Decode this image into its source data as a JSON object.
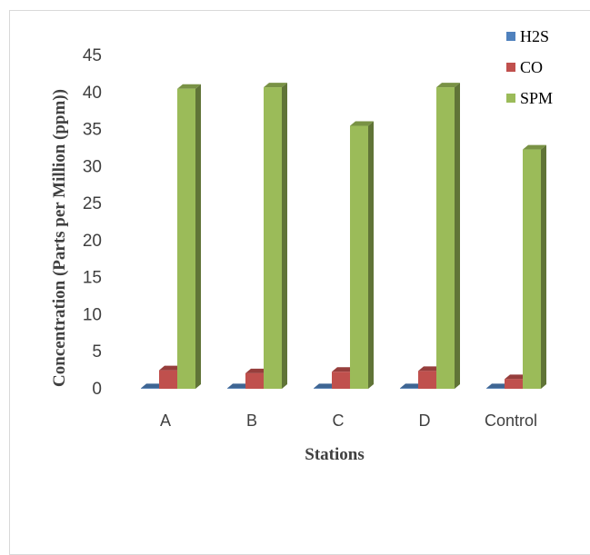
{
  "chart_data": {
    "type": "bar",
    "title": "",
    "xlabel": "Stations",
    "ylabel": "Concentration (Parts per Million (ppm))",
    "categories": [
      "A",
      "B",
      "C",
      "D",
      "Control"
    ],
    "series": [
      {
        "name": "H2S",
        "color": "#4f81bd",
        "values": [
          0.02,
          0.02,
          0.02,
          0.02,
          0.02
        ]
      },
      {
        "name": "CO",
        "color": "#c0504d",
        "values": [
          2.5,
          2.1,
          2.3,
          2.4,
          1.3
        ]
      },
      {
        "name": "SPM",
        "color": "#9bbb59",
        "values": [
          40.5,
          40.7,
          35.5,
          40.7,
          32.3
        ]
      }
    ],
    "ylim": [
      0,
      45
    ],
    "yticks": [
      0,
      5,
      10,
      15,
      20,
      25,
      30,
      35,
      40,
      45
    ],
    "legend_position": "right",
    "grid": false
  }
}
